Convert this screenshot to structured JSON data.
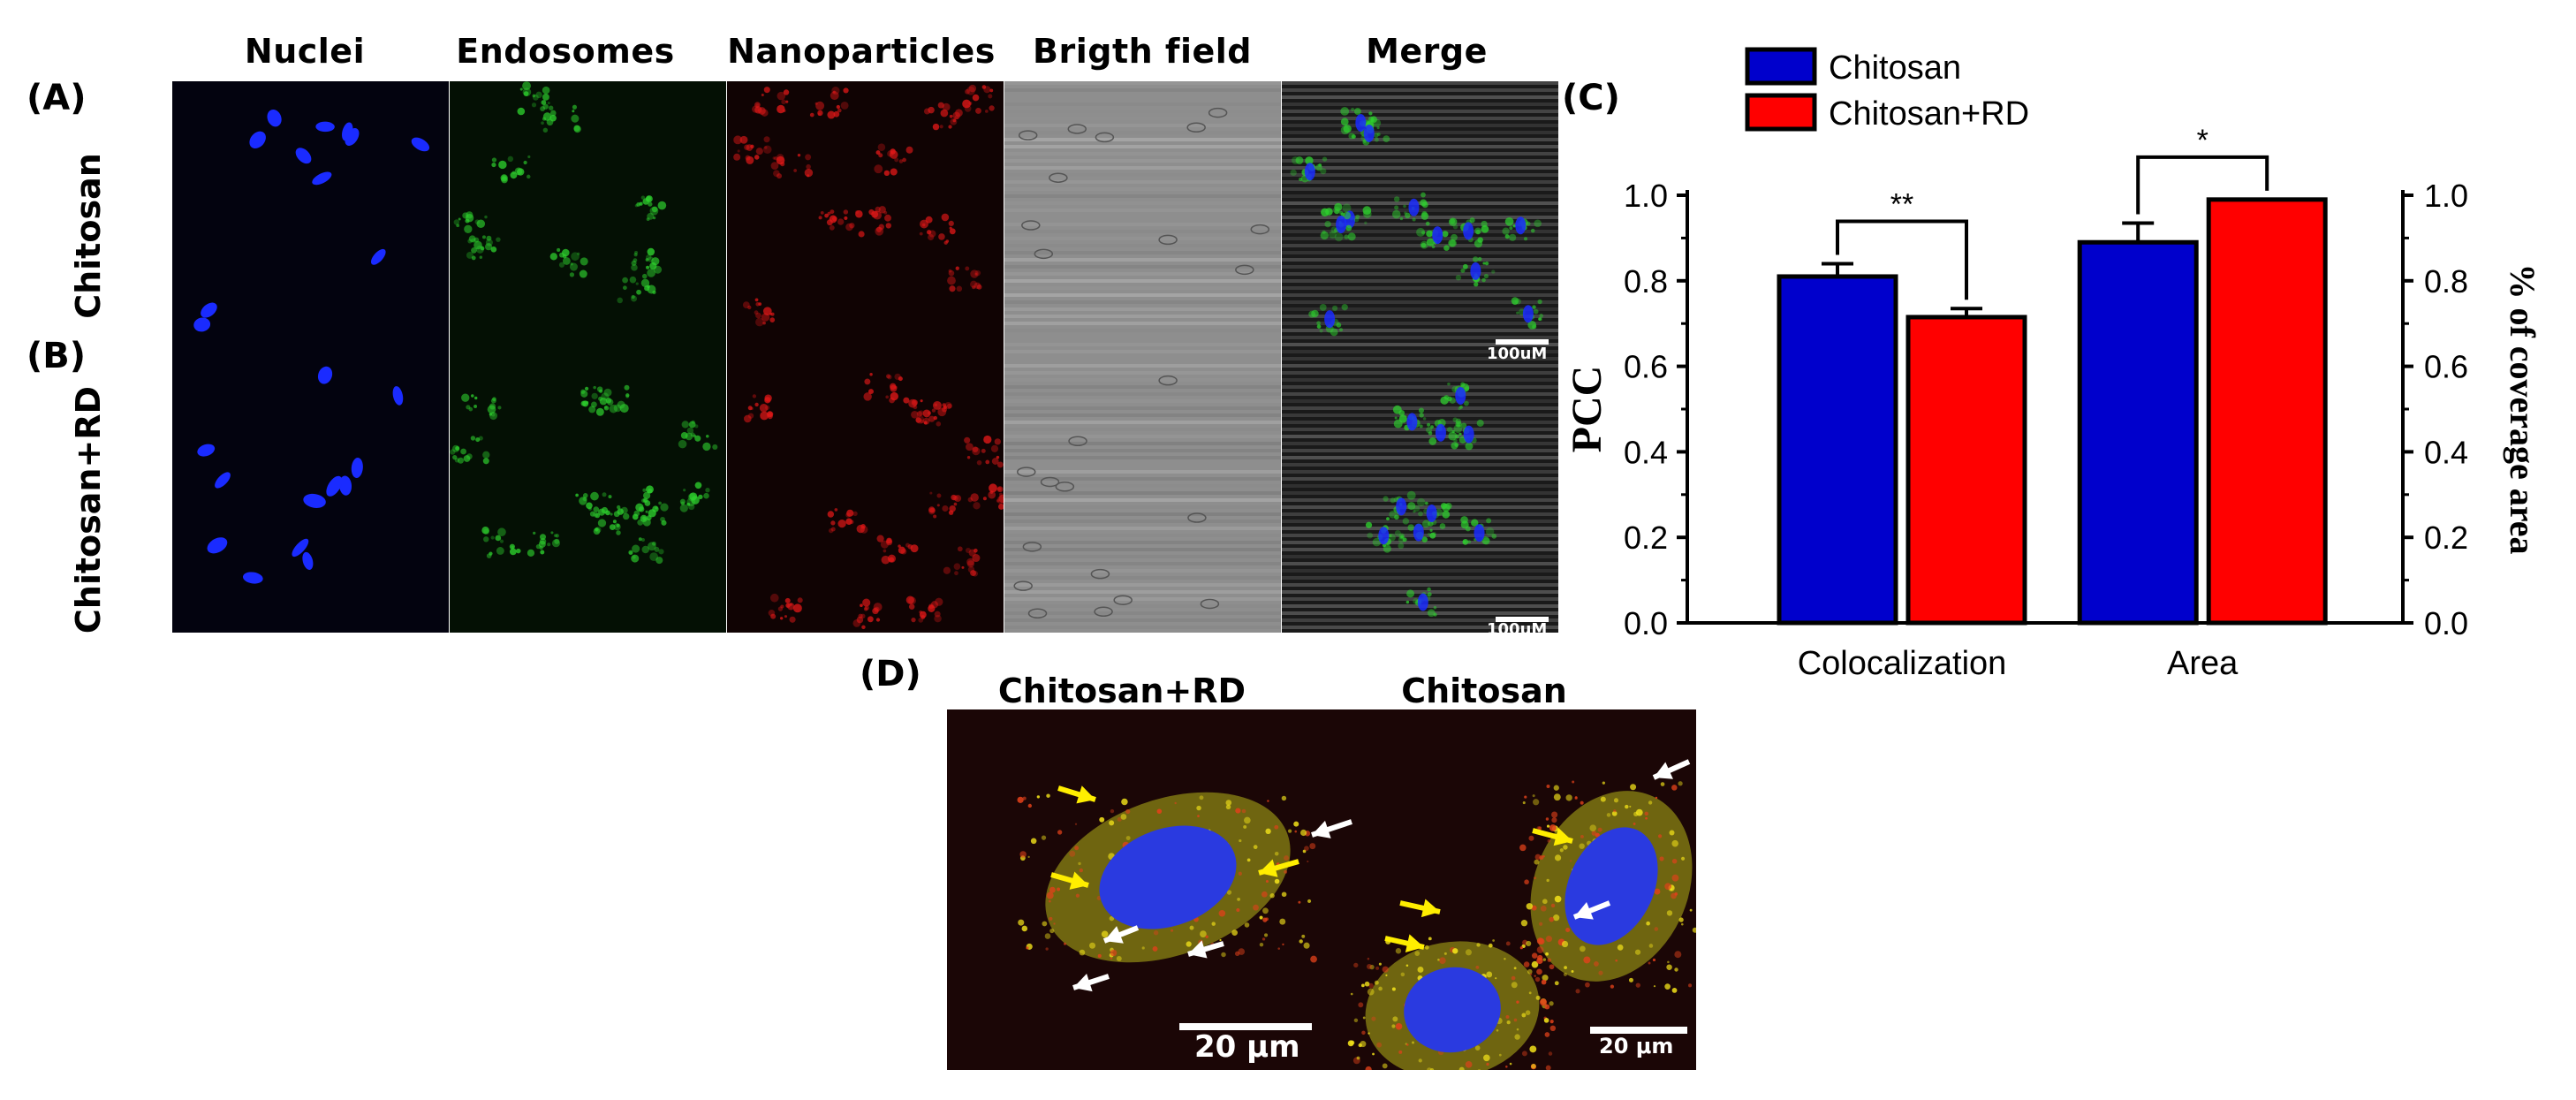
{
  "panel_letters": {
    "a": "(A)",
    "b": "(B)",
    "c": "(C)",
    "d": "(D)"
  },
  "column_headers": [
    "Nuclei",
    "Endosomes",
    "Nanoparticles",
    "Brigth field",
    "Merge"
  ],
  "row_labels": [
    "Chitosan",
    "Chitosan+RD"
  ],
  "scale_bar_ab": "100uM",
  "panel_d": {
    "titles": [
      "Chitosan+RD",
      "Chitosan"
    ],
    "scale_bars": [
      "20 μm",
      "20 μm"
    ]
  },
  "colors": {
    "chitosan": "#0000cc",
    "chitosan_rd": "#ff0000",
    "nuclei": "#1a2bff",
    "endosomes": "#2ed12e",
    "nanoparticles": "#e01818"
  },
  "chart_data": {
    "type": "bar",
    "categories": [
      "Colocalization",
      "Area"
    ],
    "series": [
      {
        "name": "Chitosan",
        "values": [
          0.81,
          0.89
        ],
        "errors": [
          0.03,
          0.045
        ]
      },
      {
        "name": "Chitosan+RD",
        "values": [
          0.715,
          0.99
        ],
        "errors": [
          0.02,
          0.0
        ]
      }
    ],
    "ylabel_left": "PCC",
    "ylabel_right": "% of coverage area",
    "ylim": [
      0,
      1.0
    ],
    "yticks": [
      "0.0",
      "0.2",
      "0.4",
      "0.6",
      "0.8",
      "1.0"
    ],
    "significance": [
      "**",
      "*"
    ],
    "legend_position": "top"
  }
}
